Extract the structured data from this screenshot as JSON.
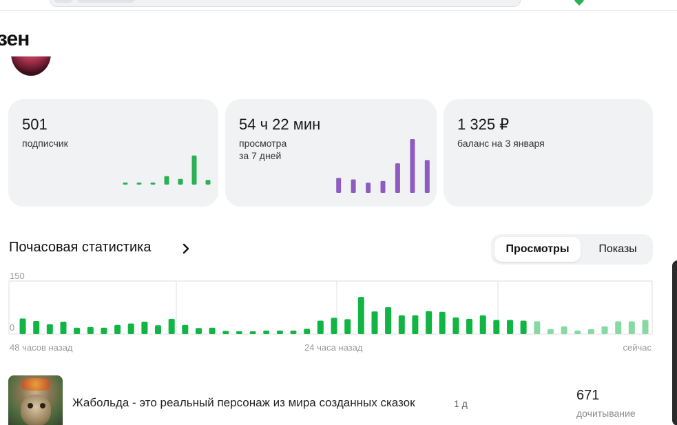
{
  "header": {
    "title": "зен"
  },
  "stats": [
    {
      "value": "501",
      "label": "подписчик",
      "label2": "",
      "color": "#2ab155",
      "spark": [
        0.03,
        0.03,
        0.03,
        0.18,
        0.12,
        0.62,
        0.1
      ]
    },
    {
      "value": "54 ч 22 мин",
      "label": "просмотра",
      "label2": "за 7 дней",
      "color": "#8e5cc0",
      "spark": [
        0.28,
        0.25,
        0.19,
        0.22,
        0.55,
        1.0,
        0.61
      ]
    },
    {
      "value": "1 325 ₽",
      "label": "баланс на 3 января",
      "label2": ""
    }
  ],
  "hourly": {
    "title": "Почасовая статистика",
    "tabs": [
      {
        "label": "Просмотры",
        "active": true
      },
      {
        "label": "Показы",
        "active": false
      }
    ]
  },
  "chart_data": {
    "type": "bar",
    "ylim": [
      0,
      150
    ],
    "yticks": [
      "150",
      "0"
    ],
    "xlabels": [
      "48 часов назад",
      "24 часа назад",
      "сейчас"
    ],
    "values": [
      44,
      37,
      28,
      35,
      18,
      20,
      18,
      26,
      30,
      35,
      25,
      43,
      26,
      17,
      18,
      9,
      8,
      8,
      10,
      10,
      10,
      15,
      38,
      46,
      42,
      105,
      64,
      76,
      53,
      53,
      65,
      63,
      47,
      43,
      53,
      40,
      40,
      38,
      36,
      14,
      22,
      10,
      14,
      22,
      36,
      36,
      40
    ],
    "recent_count": 9,
    "colors": {
      "past": "#10b544",
      "recent": "#86d9a3",
      "grid": "#dddddd"
    }
  },
  "article": {
    "title": "Жабольда - это реальный персонаж из мира созданных сказок",
    "age": "1 д",
    "stat_value": "671",
    "stat_label": "дочитывание"
  }
}
